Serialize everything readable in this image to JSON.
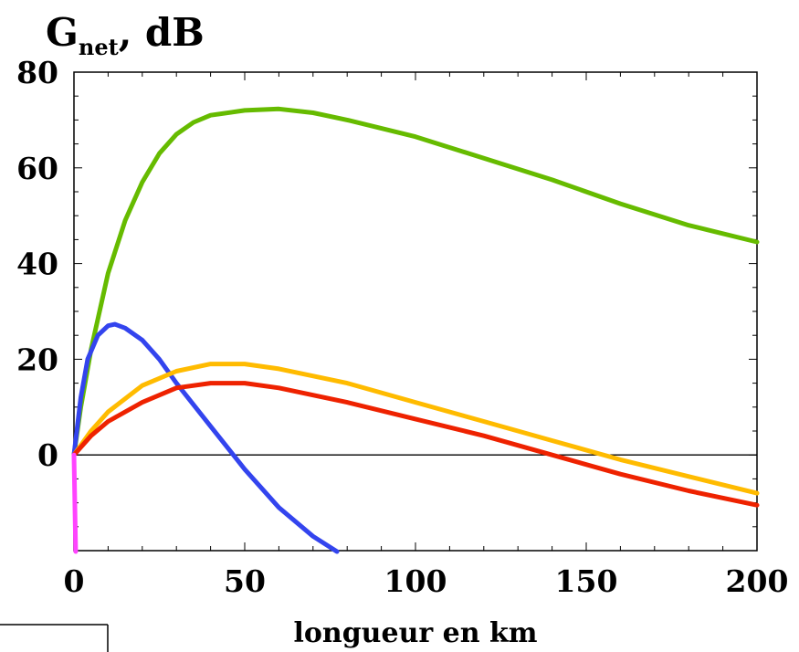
{
  "chart_data": {
    "type": "line",
    "title": "",
    "ylabel": {
      "main": "G",
      "sub": "net",
      "suffix": ", dB"
    },
    "xlabel": "longueur en km",
    "xlim": [
      0,
      200
    ],
    "ylim": [
      -20,
      80
    ],
    "xticks": [
      0,
      50,
      100,
      150,
      200
    ],
    "yticks": [
      0,
      20,
      40,
      60,
      80
    ],
    "xtick_labels": [
      "0",
      "50",
      "100",
      "150",
      "200"
    ],
    "ytick_labels": [
      "0",
      "20",
      "40",
      "60",
      "80"
    ],
    "zero_line": true,
    "grid": false,
    "series": [
      {
        "color": "#66bb00",
        "points": [
          [
            0,
            0
          ],
          [
            2,
            10
          ],
          [
            5,
            22
          ],
          [
            10,
            38
          ],
          [
            15,
            49
          ],
          [
            20,
            57
          ],
          [
            25,
            63
          ],
          [
            30,
            67
          ],
          [
            35,
            69.5
          ],
          [
            40,
            71
          ],
          [
            50,
            72
          ],
          [
            60,
            72.3
          ],
          [
            70,
            71.5
          ],
          [
            80,
            70
          ],
          [
            100,
            66.5
          ],
          [
            120,
            62
          ],
          [
            140,
            57.5
          ],
          [
            160,
            52.5
          ],
          [
            180,
            48
          ],
          [
            200,
            44.5
          ]
        ]
      },
      {
        "color": "#3344ee",
        "points": [
          [
            0,
            0
          ],
          [
            2,
            12
          ],
          [
            4,
            20
          ],
          [
            7,
            25
          ],
          [
            10,
            27
          ],
          [
            12,
            27.3
          ],
          [
            15,
            26.5
          ],
          [
            20,
            24
          ],
          [
            25,
            20
          ],
          [
            30,
            15
          ],
          [
            40,
            6
          ],
          [
            50,
            -3
          ],
          [
            60,
            -11
          ],
          [
            70,
            -17
          ],
          [
            77,
            -21
          ]
        ]
      },
      {
        "color": "#ffbb00",
        "points": [
          [
            0,
            0
          ],
          [
            5,
            5
          ],
          [
            10,
            9
          ],
          [
            20,
            14.5
          ],
          [
            30,
            17.5
          ],
          [
            40,
            19
          ],
          [
            50,
            19
          ],
          [
            60,
            18
          ],
          [
            80,
            15
          ],
          [
            100,
            11
          ],
          [
            120,
            7
          ],
          [
            140,
            3
          ],
          [
            160,
            -1
          ],
          [
            180,
            -4.5
          ],
          [
            200,
            -8
          ]
        ]
      },
      {
        "color": "#ee2200",
        "points": [
          [
            0,
            0
          ],
          [
            5,
            4
          ],
          [
            10,
            7
          ],
          [
            20,
            11
          ],
          [
            30,
            14
          ],
          [
            40,
            15
          ],
          [
            50,
            15
          ],
          [
            60,
            14
          ],
          [
            80,
            11
          ],
          [
            100,
            7.5
          ],
          [
            120,
            4
          ],
          [
            140,
            0
          ],
          [
            160,
            -4
          ],
          [
            180,
            -7.5
          ],
          [
            200,
            -10.5
          ]
        ]
      },
      {
        "color": "#ff44ff",
        "points": [
          [
            0,
            0
          ],
          [
            0.5,
            -21
          ]
        ]
      }
    ]
  }
}
